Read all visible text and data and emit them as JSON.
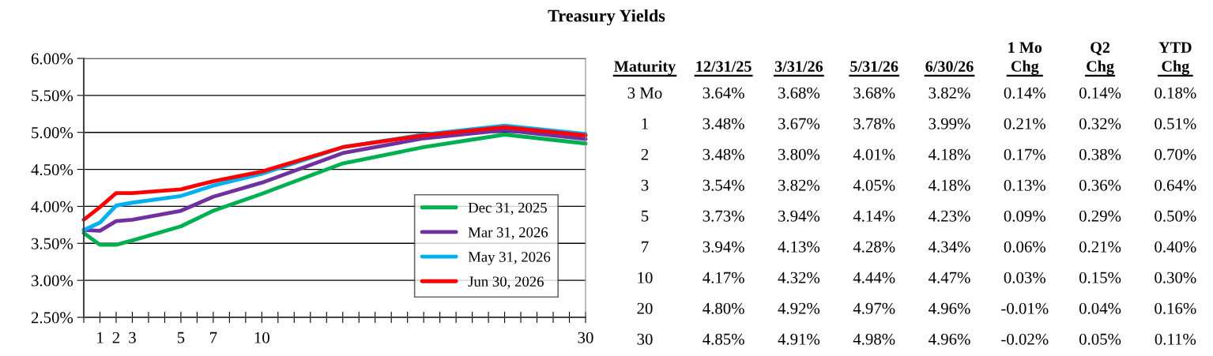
{
  "chart_data": [
    {
      "type": "line",
      "title": "Treasury Yields",
      "categories": [
        null,
        "1",
        "2",
        "3",
        null,
        null,
        "5",
        null,
        "7",
        null,
        null,
        "10",
        null,
        null,
        null,
        null,
        null,
        null,
        null,
        null,
        null,
        null,
        null,
        null,
        null,
        null,
        null,
        null,
        null,
        null,
        null,
        "30"
      ],
      "ylim": [
        2.5,
        6.0
      ],
      "yticks": [
        {
          "value": 2.5,
          "label": "2.50%"
        },
        {
          "value": 3.0,
          "label": "3.00%"
        },
        {
          "value": 3.5,
          "label": "3.50%"
        },
        {
          "value": 4.0,
          "label": "4.00%"
        },
        {
          "value": 4.5,
          "label": "4.50%"
        },
        {
          "value": 5.0,
          "label": "5.00%"
        },
        {
          "value": 5.5,
          "label": "5.50%"
        },
        {
          "value": 6.0,
          "label": "6.00%"
        }
      ],
      "grid": "y",
      "legend": "bottom right",
      "marker": "none",
      "line_style": "solid",
      "series": [
        {
          "name": "Dec 31, 2025",
          "color": "#00b050",
          "values": [
            3.64,
            3.48,
            3.48,
            3.54,
            null,
            null,
            3.73,
            null,
            3.94,
            null,
            null,
            4.17,
            null,
            null,
            null,
            null,
            4.58,
            null,
            null,
            null,
            null,
            4.8,
            null,
            null,
            null,
            null,
            4.97,
            null,
            null,
            null,
            null,
            4.85
          ]
        },
        {
          "name": "Mar 31, 2026",
          "color": "#7030a0",
          "values": [
            3.68,
            3.67,
            3.8,
            3.82,
            null,
            null,
            3.94,
            null,
            4.13,
            null,
            null,
            4.32,
            null,
            null,
            null,
            null,
            4.72,
            null,
            null,
            null,
            null,
            4.92,
            null,
            null,
            null,
            null,
            5.03,
            null,
            null,
            null,
            null,
            4.91
          ]
        },
        {
          "name": "May 31, 2026",
          "color": "#00b0f0",
          "values": [
            3.68,
            3.78,
            4.01,
            4.05,
            null,
            null,
            4.14,
            null,
            4.28,
            null,
            null,
            4.44,
            null,
            null,
            null,
            null,
            4.8,
            null,
            null,
            null,
            null,
            4.97,
            null,
            null,
            null,
            null,
            5.09,
            null,
            null,
            null,
            null,
            4.98
          ]
        },
        {
          "name": "Jun 30, 2026",
          "color": "#ff0000",
          "values": [
            3.82,
            3.99,
            4.18,
            4.18,
            null,
            null,
            4.23,
            null,
            4.34,
            null,
            null,
            4.47,
            null,
            null,
            null,
            null,
            4.8,
            null,
            null,
            null,
            null,
            4.96,
            null,
            null,
            null,
            null,
            5.07,
            null,
            null,
            null,
            null,
            4.96
          ]
        }
      ]
    },
    {
      "type": "other",
      "ylabel": "Maturity",
      "categories": [
        "12/31/25",
        "3/31/26",
        "5/31/26",
        "6/30/26",
        "1 Mo\nChg",
        "Q2\nChg",
        "YTD\nChg"
      ],
      "y_categories": [
        "3 Mo",
        "1",
        "2",
        "3",
        "5",
        "7",
        "10",
        "20",
        "30"
      ],
      "cell_labels": [
        [
          "3.64%",
          "3.68%",
          "3.68%",
          "3.82%",
          "0.14%",
          "0.14%",
          "0.18%"
        ],
        [
          "3.48%",
          "3.67%",
          "3.78%",
          "3.99%",
          "0.21%",
          "0.32%",
          "0.51%"
        ],
        [
          "3.48%",
          "3.80%",
          "4.01%",
          "4.18%",
          "0.17%",
          "0.38%",
          "0.70%"
        ],
        [
          "3.54%",
          "3.82%",
          "4.05%",
          "4.18%",
          "0.13%",
          "0.36%",
          "0.64%"
        ],
        [
          "3.73%",
          "3.94%",
          "4.14%",
          "4.23%",
          "0.09%",
          "0.29%",
          "0.50%"
        ],
        [
          "3.94%",
          "4.13%",
          "4.28%",
          "4.34%",
          "0.06%",
          "0.21%",
          "0.40%"
        ],
        [
          "4.17%",
          "4.32%",
          "4.44%",
          "4.47%",
          "0.03%",
          "0.15%",
          "0.30%"
        ],
        [
          "4.80%",
          "4.92%",
          "4.97%",
          "4.96%",
          "-0.01%",
          "0.04%",
          "0.16%"
        ],
        [
          "4.85%",
          "4.91%",
          "4.98%",
          "4.96%",
          "-0.02%",
          "0.05%",
          "0.11%"
        ]
      ]
    }
  ]
}
